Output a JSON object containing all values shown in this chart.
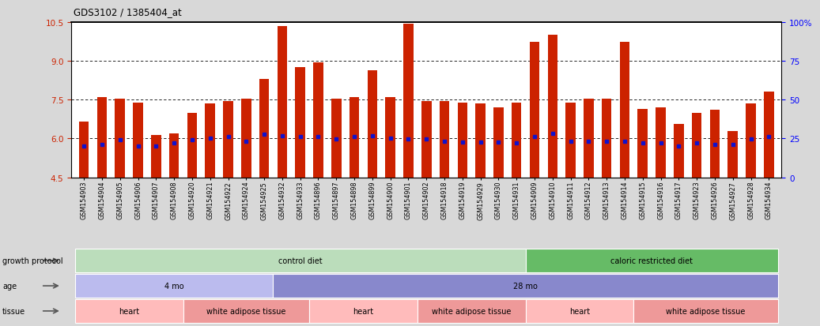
{
  "title": "GDS3102 / 1385404_at",
  "samples": [
    "GSM154903",
    "GSM154904",
    "GSM154905",
    "GSM154906",
    "GSM154907",
    "GSM154908",
    "GSM154920",
    "GSM154921",
    "GSM154922",
    "GSM154924",
    "GSM154925",
    "GSM154932",
    "GSM154933",
    "GSM154896",
    "GSM154897",
    "GSM154898",
    "GSM154899",
    "GSM154900",
    "GSM154901",
    "GSM154902",
    "GSM154918",
    "GSM154919",
    "GSM154929",
    "GSM154930",
    "GSM154931",
    "GSM154909",
    "GSM154910",
    "GSM154911",
    "GSM154912",
    "GSM154913",
    "GSM154914",
    "GSM154915",
    "GSM154916",
    "GSM154917",
    "GSM154923",
    "GSM154926",
    "GSM154927",
    "GSM154928",
    "GSM154934"
  ],
  "bar_heights": [
    6.65,
    7.6,
    7.55,
    7.4,
    6.15,
    6.2,
    7.0,
    7.35,
    7.45,
    7.55,
    8.3,
    10.35,
    8.75,
    8.95,
    7.55,
    7.6,
    8.65,
    7.6,
    10.45,
    7.45,
    7.45,
    7.4,
    7.35,
    7.2,
    7.4,
    9.75,
    10.0,
    7.4,
    7.55,
    7.55,
    9.75,
    7.15,
    7.2,
    6.55,
    7.0,
    7.1,
    6.3,
    7.35,
    7.8
  ],
  "blue_dot_y": [
    5.72,
    5.78,
    5.95,
    5.72,
    5.72,
    5.82,
    5.95,
    6.02,
    6.07,
    5.88,
    6.17,
    6.12,
    6.07,
    6.07,
    5.97,
    6.07,
    6.12,
    6.02,
    5.97,
    5.97,
    5.9,
    5.85,
    5.87,
    5.85,
    5.82,
    6.07,
    6.2,
    5.9,
    5.9,
    5.88,
    5.88,
    5.82,
    5.82,
    5.72,
    5.82,
    5.78,
    5.78,
    5.97,
    6.07
  ],
  "ylim_left": [
    4.5,
    10.5
  ],
  "ylim_right": [
    0,
    100
  ],
  "yticks_left": [
    4.5,
    6.0,
    7.5,
    9.0,
    10.5
  ],
  "yticks_right": [
    0,
    25,
    50,
    75,
    100
  ],
  "bar_color": "#CC2200",
  "dot_color": "#1111CC",
  "bg_color": "#FFFFFF",
  "panel_bg": "#D8D8D8",
  "gridline_y": [
    6.0,
    7.5,
    9.0
  ],
  "groups_growth": [
    {
      "label": "control diet",
      "start": 0,
      "end": 25,
      "color": "#BBDDBB"
    },
    {
      "label": "caloric restricted diet",
      "start": 25,
      "end": 39,
      "color": "#66BB66"
    }
  ],
  "groups_age": [
    {
      "label": "4 mo",
      "start": 0,
      "end": 11,
      "color": "#BBBBEE"
    },
    {
      "label": "28 mo",
      "start": 11,
      "end": 39,
      "color": "#8888CC"
    }
  ],
  "groups_tissue": [
    {
      "label": "heart",
      "start": 0,
      "end": 6,
      "color": "#FFBBBB"
    },
    {
      "label": "white adipose tissue",
      "start": 6,
      "end": 13,
      "color": "#EE9999"
    },
    {
      "label": "heart",
      "start": 13,
      "end": 19,
      "color": "#FFBBBB"
    },
    {
      "label": "white adipose tissue",
      "start": 19,
      "end": 25,
      "color": "#EE9999"
    },
    {
      "label": "heart",
      "start": 25,
      "end": 31,
      "color": "#FFBBBB"
    },
    {
      "label": "white adipose tissue",
      "start": 31,
      "end": 39,
      "color": "#EE9999"
    }
  ]
}
